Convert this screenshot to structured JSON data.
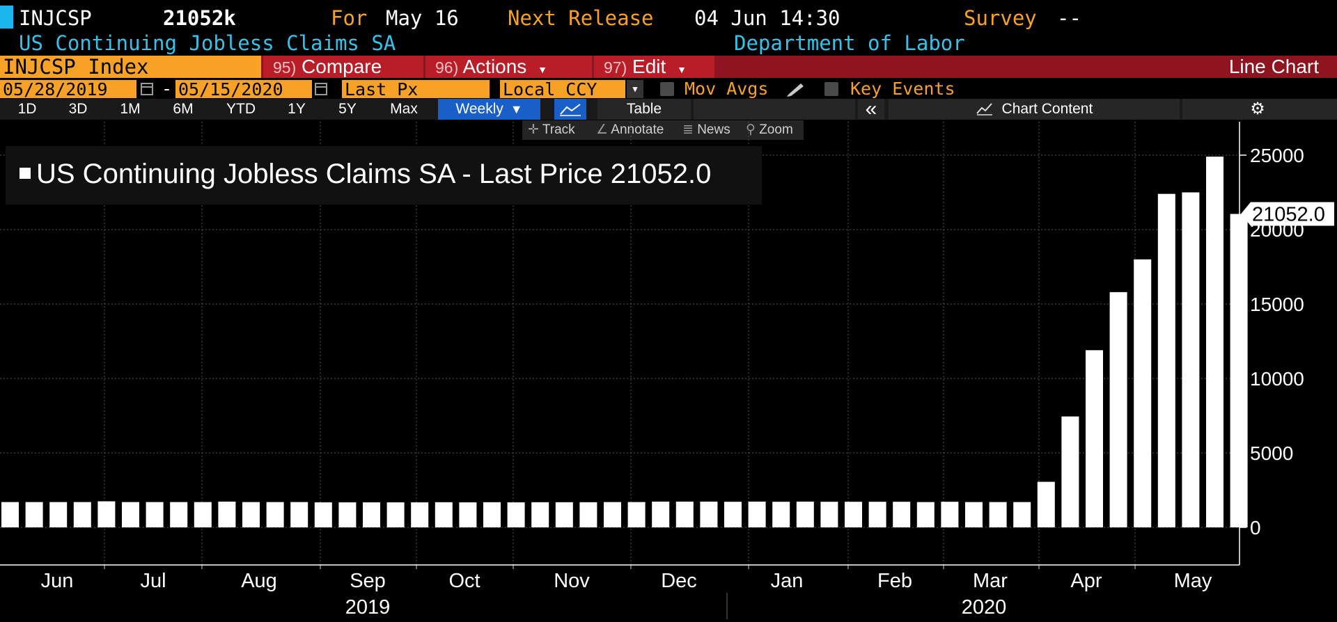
{
  "header": {
    "ticker": "INJCSP",
    "value": "21052k",
    "for_label": "For",
    "for_date": "May 16",
    "next_label": "Next Release",
    "next_date": "04 Jun 14:30",
    "survey_label": "Survey",
    "survey_value": "--",
    "description": "US Continuing Jobless Claims SA",
    "source": "Department of Labor"
  },
  "toolbar": {
    "security": "INJCSP Index",
    "compare_num": "95)",
    "compare_label": "Compare",
    "actions_num": "96)",
    "actions_label": "Actions",
    "edit_num": "97)",
    "edit_label": "Edit",
    "chart_type": "Line Chart"
  },
  "options": {
    "start_date": "05/28/2019",
    "dash": "-",
    "end_date": "05/15/2020",
    "field": "Last Px",
    "currency": "Local CCY",
    "mov_avgs": "Mov Avgs",
    "key_events": "Key Events"
  },
  "periods": {
    "items": [
      "1D",
      "3D",
      "1M",
      "6M",
      "YTD",
      "1Y",
      "5Y",
      "Max"
    ],
    "frequency": "Weekly",
    "table": "Table",
    "collapse": "«",
    "chart_content": "Chart Content"
  },
  "tools": {
    "track": "Track",
    "annotate": "Annotate",
    "news": "News",
    "zoom": "Zoom"
  },
  "legend": {
    "text": "US Continuing Jobless Claims SA - Last Price",
    "value": "21052.0"
  },
  "colors": {
    "accent_orange": "#f7a227",
    "cyan": "#34c3ea",
    "bar_red": "#8e1520",
    "button_red": "#b91d28",
    "weekly_blue": "#1a5fc8",
    "series": "#ffffff"
  },
  "chart_data": {
    "type": "bar",
    "grid": true,
    "ylim": [
      0,
      26000
    ],
    "yticks": [
      0,
      5000,
      10000,
      15000,
      20000,
      25000
    ],
    "last_value_label": "21052.0",
    "x_month_labels": [
      "Jun",
      "Jul",
      "Aug",
      "Sep",
      "Oct",
      "Nov",
      "Dec",
      "Jan",
      "Feb",
      "Mar",
      "Apr",
      "May"
    ],
    "x_year_labels": [
      "2019",
      "2020"
    ],
    "series": [
      {
        "values": [
          1700,
          1700,
          1700,
          1700,
          1750,
          1700,
          1700,
          1700,
          1700,
          1730,
          1700,
          1700,
          1700,
          1680,
          1680,
          1680,
          1680,
          1680,
          1690,
          1680,
          1690,
          1680,
          1690,
          1690,
          1690,
          1700,
          1700,
          1730,
          1730,
          1730,
          1720,
          1730,
          1720,
          1730,
          1720,
          1720,
          1720,
          1720,
          1700,
          1720,
          1700,
          1700,
          1700,
          3060,
          7450,
          11900,
          15800,
          18000,
          22400,
          22500,
          24900,
          21052
        ]
      }
    ]
  }
}
